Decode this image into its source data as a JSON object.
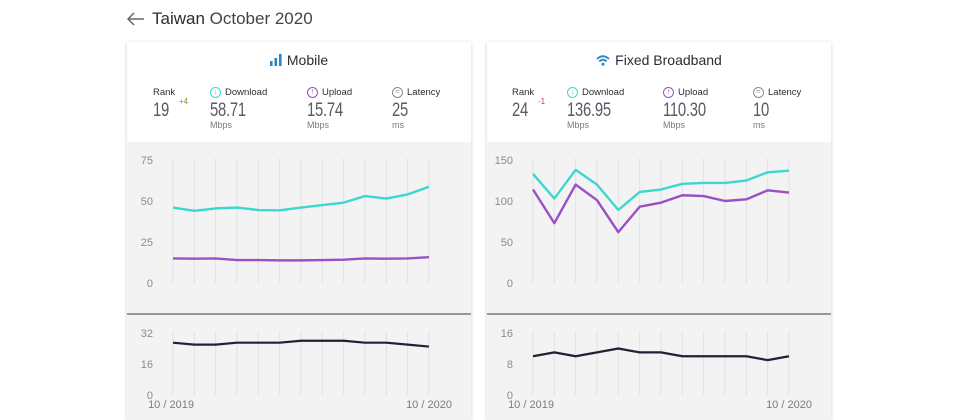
{
  "header": {
    "country": "Taiwan",
    "month": "October 2020"
  },
  "colors": {
    "download": "#3dd8cd",
    "upload": "#9a4fc6",
    "latency": "#1f2233",
    "rank_up": "#6a9a2a",
    "rank_down": "#c8336a"
  },
  "mobile": {
    "title": "Mobile",
    "icon": "signal-bars-icon",
    "rank_label": "Rank",
    "rank": "19",
    "rank_change": "+4",
    "download_label": "Download",
    "download": "58.71",
    "download_unit": "Mbps",
    "upload_label": "Upload",
    "upload": "15.74",
    "upload_unit": "Mbps",
    "latency_label": "Latency",
    "latency": "25",
    "latency_unit": "ms",
    "speed_ticks": [
      "75",
      "50",
      "25",
      "0"
    ],
    "latency_ticks": [
      "32",
      "16",
      "0"
    ],
    "x_start": "10 / 2019",
    "x_end": "10 / 2020"
  },
  "fixed": {
    "title": "Fixed Broadband",
    "icon": "wifi-icon",
    "rank_label": "Rank",
    "rank": "24",
    "rank_change": "-1",
    "download_label": "Download",
    "download": "136.95",
    "download_unit": "Mbps",
    "upload_label": "Upload",
    "upload": "110.30",
    "upload_unit": "Mbps",
    "latency_label": "Latency",
    "latency": "10",
    "latency_unit": "ms",
    "speed_ticks": [
      "150",
      "100",
      "50",
      "0"
    ],
    "latency_ticks": [
      "16",
      "8",
      "0"
    ],
    "x_start": "10 / 2019",
    "x_end": "10 / 2020"
  },
  "chart_data": [
    {
      "type": "line",
      "panel": "Mobile speed",
      "ylim": [
        0,
        75
      ],
      "x": [
        "10/2019",
        "11/2019",
        "12/2019",
        "1/2020",
        "2/2020",
        "3/2020",
        "4/2020",
        "5/2020",
        "6/2020",
        "7/2020",
        "8/2020",
        "9/2020",
        "10/2020"
      ],
      "series": [
        {
          "name": "Download",
          "values": [
            46,
            44,
            45.5,
            46,
            44.5,
            44.3,
            46,
            47.5,
            49,
            53,
            51.5,
            54,
            58.71
          ]
        },
        {
          "name": "Upload",
          "values": [
            15,
            14.8,
            15,
            14,
            14,
            13.8,
            13.8,
            14,
            14.2,
            15,
            14.8,
            15,
            15.74
          ]
        }
      ]
    },
    {
      "type": "line",
      "panel": "Mobile latency",
      "ylim": [
        0,
        32
      ],
      "x": [
        "10/2019",
        "11/2019",
        "12/2019",
        "1/2020",
        "2/2020",
        "3/2020",
        "4/2020",
        "5/2020",
        "6/2020",
        "7/2020",
        "8/2020",
        "9/2020",
        "10/2020"
      ],
      "series": [
        {
          "name": "Latency",
          "values": [
            27,
            26,
            26,
            27,
            27,
            27,
            28,
            28,
            28,
            27,
            27,
            26,
            25
          ]
        }
      ]
    },
    {
      "type": "line",
      "panel": "Fixed Broadband speed",
      "ylim": [
        0,
        150
      ],
      "x": [
        "10/2019",
        "11/2019",
        "12/2019",
        "1/2020",
        "2/2020",
        "3/2020",
        "4/2020",
        "5/2020",
        "6/2020",
        "7/2020",
        "8/2020",
        "9/2020",
        "10/2020"
      ],
      "series": [
        {
          "name": "Download",
          "values": [
            133,
            103,
            138,
            120,
            89,
            111,
            114,
            121,
            122,
            122,
            125,
            135,
            136.95
          ]
        },
        {
          "name": "Upload",
          "values": [
            114,
            73,
            120,
            101,
            62,
            93,
            98,
            107,
            106,
            100,
            102,
            113,
            110.3
          ]
        }
      ]
    },
    {
      "type": "line",
      "panel": "Fixed Broadband latency",
      "ylim": [
        0,
        16
      ],
      "x": [
        "10/2019",
        "11/2019",
        "12/2019",
        "1/2020",
        "2/2020",
        "3/2020",
        "4/2020",
        "5/2020",
        "6/2020",
        "7/2020",
        "8/2020",
        "9/2020",
        "10/2020"
      ],
      "series": [
        {
          "name": "Latency",
          "values": [
            10,
            11,
            10,
            11,
            12,
            11,
            11,
            10,
            10,
            10,
            10,
            9,
            10
          ]
        }
      ]
    }
  ]
}
